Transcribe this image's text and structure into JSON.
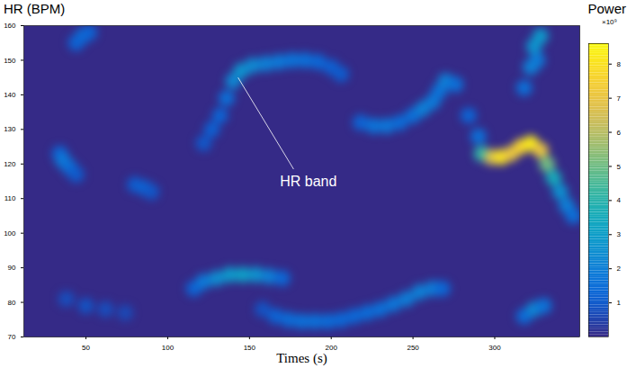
{
  "chart_data": {
    "type": "heatmap",
    "y_title": "HR (BPM)",
    "x_title": "Times (s)",
    "colorbar_title": "Power",
    "colorbar_multiplier": "×10⁹",
    "xlim": [
      12,
      352
    ],
    "xticks": [
      50,
      100,
      150,
      200,
      250,
      300
    ],
    "ylim": [
      70,
      160
    ],
    "yticks": [
      70,
      80,
      90,
      100,
      110,
      120,
      130,
      140,
      150,
      160
    ],
    "clim": [
      0,
      8.6
    ],
    "cticks": [
      1,
      2,
      3,
      4,
      5,
      6,
      7,
      8
    ],
    "annotations": [
      {
        "text": "HR band",
        "x": 186,
        "y": 115,
        "line": [
          [
            143,
            145
          ],
          [
            177,
            118.5
          ]
        ]
      }
    ],
    "cells": [
      {
        "t": 48,
        "hr": 157,
        "power": 1.6
      },
      {
        "t": 44,
        "hr": 155,
        "power": 1.2
      },
      {
        "t": 52,
        "hr": 158,
        "power": 1.2
      },
      {
        "t": 34,
        "hr": 123,
        "power": 1.2
      },
      {
        "t": 36,
        "hr": 121,
        "power": 1.8
      },
      {
        "t": 40,
        "hr": 119,
        "power": 1.5
      },
      {
        "t": 44,
        "hr": 117,
        "power": 1.0
      },
      {
        "t": 80,
        "hr": 114,
        "power": 1.0
      },
      {
        "t": 86,
        "hr": 113,
        "power": 1.2
      },
      {
        "t": 90,
        "hr": 112,
        "power": 0.9
      },
      {
        "t": 38,
        "hr": 81,
        "power": 0.7
      },
      {
        "t": 50,
        "hr": 79,
        "power": 0.8
      },
      {
        "t": 62,
        "hr": 78,
        "power": 0.7
      },
      {
        "t": 74,
        "hr": 77,
        "power": 0.6
      },
      {
        "t": 116,
        "hr": 84,
        "power": 1.2
      },
      {
        "t": 122,
        "hr": 86,
        "power": 1.8
      },
      {
        "t": 130,
        "hr": 87,
        "power": 2.4
      },
      {
        "t": 138,
        "hr": 88,
        "power": 2.8
      },
      {
        "t": 146,
        "hr": 88,
        "power": 3.0
      },
      {
        "t": 154,
        "hr": 88,
        "power": 2.6
      },
      {
        "t": 162,
        "hr": 87.5,
        "power": 2.0
      },
      {
        "t": 170,
        "hr": 87,
        "power": 1.3
      },
      {
        "t": 158,
        "hr": 78,
        "power": 0.8
      },
      {
        "t": 166,
        "hr": 76,
        "power": 1.2
      },
      {
        "t": 174,
        "hr": 75,
        "power": 1.4
      },
      {
        "t": 182,
        "hr": 74.5,
        "power": 1.5
      },
      {
        "t": 190,
        "hr": 74.5,
        "power": 1.5
      },
      {
        "t": 198,
        "hr": 74.5,
        "power": 1.4
      },
      {
        "t": 206,
        "hr": 75,
        "power": 1.3
      },
      {
        "t": 214,
        "hr": 76,
        "power": 1.3
      },
      {
        "t": 222,
        "hr": 77,
        "power": 1.4
      },
      {
        "t": 230,
        "hr": 78,
        "power": 1.5
      },
      {
        "t": 238,
        "hr": 79.5,
        "power": 1.7
      },
      {
        "t": 246,
        "hr": 81,
        "power": 1.9
      },
      {
        "t": 254,
        "hr": 83,
        "power": 2.0
      },
      {
        "t": 262,
        "hr": 84,
        "power": 1.9
      },
      {
        "t": 268,
        "hr": 84,
        "power": 1.3
      },
      {
        "t": 318,
        "hr": 76,
        "power": 1.4
      },
      {
        "t": 324,
        "hr": 78,
        "power": 2.2
      },
      {
        "t": 330,
        "hr": 79,
        "power": 1.6
      },
      {
        "t": 122,
        "hr": 126,
        "power": 0.9
      },
      {
        "t": 127,
        "hr": 130,
        "power": 1.1
      },
      {
        "t": 132,
        "hr": 134,
        "power": 1.2
      },
      {
        "t": 136,
        "hr": 139,
        "power": 1.5
      },
      {
        "t": 140,
        "hr": 144,
        "power": 2.2
      },
      {
        "t": 145,
        "hr": 147,
        "power": 2.6
      },
      {
        "t": 152,
        "hr": 148.5,
        "power": 2.3
      },
      {
        "t": 160,
        "hr": 149,
        "power": 2.0
      },
      {
        "t": 168,
        "hr": 149.5,
        "power": 1.8
      },
      {
        "t": 176,
        "hr": 150,
        "power": 1.6
      },
      {
        "t": 184,
        "hr": 150,
        "power": 1.5
      },
      {
        "t": 192,
        "hr": 149.5,
        "power": 1.3
      },
      {
        "t": 200,
        "hr": 148,
        "power": 1.1
      },
      {
        "t": 206,
        "hr": 146,
        "power": 1.0
      },
      {
        "t": 218,
        "hr": 132,
        "power": 1.2
      },
      {
        "t": 226,
        "hr": 131,
        "power": 1.6
      },
      {
        "t": 234,
        "hr": 131,
        "power": 1.7
      },
      {
        "t": 242,
        "hr": 132,
        "power": 1.4
      },
      {
        "t": 250,
        "hr": 134,
        "power": 1.5
      },
      {
        "t": 256,
        "hr": 136,
        "power": 2.0
      },
      {
        "t": 262,
        "hr": 138,
        "power": 1.8
      },
      {
        "t": 266,
        "hr": 141,
        "power": 1.6
      },
      {
        "t": 270,
        "hr": 144,
        "power": 2.0
      },
      {
        "t": 276,
        "hr": 143,
        "power": 1.5
      },
      {
        "t": 284,
        "hr": 134,
        "power": 1.2
      },
      {
        "t": 290,
        "hr": 128,
        "power": 1.5
      },
      {
        "t": 292,
        "hr": 123,
        "power": 4.0
      },
      {
        "t": 298,
        "hr": 122,
        "power": 6.5
      },
      {
        "t": 304,
        "hr": 122,
        "power": 8.0
      },
      {
        "t": 310,
        "hr": 123,
        "power": 7.0
      },
      {
        "t": 316,
        "hr": 125,
        "power": 7.5
      },
      {
        "t": 322,
        "hr": 126,
        "power": 8.2
      },
      {
        "t": 328,
        "hr": 124,
        "power": 7.0
      },
      {
        "t": 332,
        "hr": 120,
        "power": 5.0
      },
      {
        "t": 336,
        "hr": 116,
        "power": 3.5
      },
      {
        "t": 340,
        "hr": 112,
        "power": 2.5
      },
      {
        "t": 344,
        "hr": 108,
        "power": 2.0
      },
      {
        "t": 348,
        "hr": 105,
        "power": 1.5
      },
      {
        "t": 318,
        "hr": 142,
        "power": 1.5
      },
      {
        "t": 326,
        "hr": 150,
        "power": 1.8
      },
      {
        "t": 322,
        "hr": 148,
        "power": 2.0
      },
      {
        "t": 324,
        "hr": 154,
        "power": 2.6
      },
      {
        "t": 328,
        "hr": 157,
        "power": 2.8
      }
    ]
  }
}
